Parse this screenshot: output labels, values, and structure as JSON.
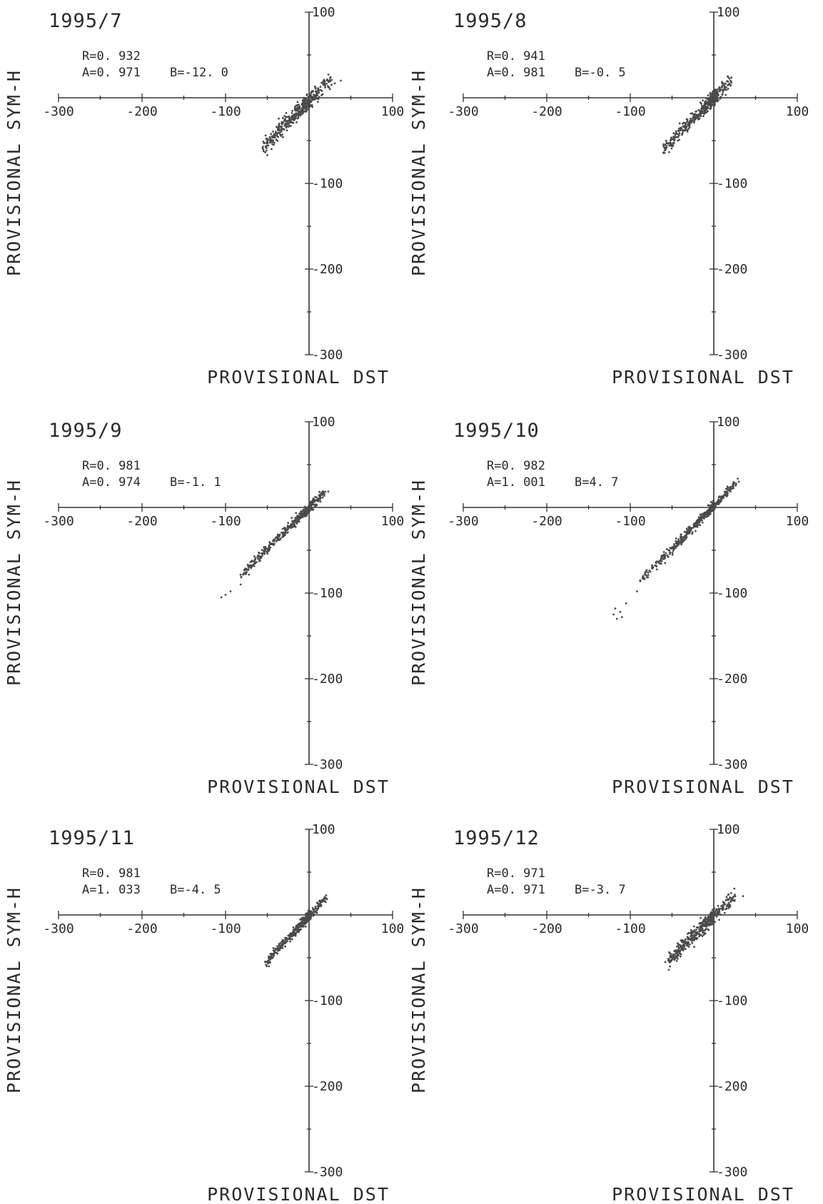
{
  "chart_data": [
    {
      "type": "scatter",
      "title": "1995/7",
      "xlabel": "PROVISIONAL DST",
      "ylabel": "PROVISIONAL SYM-H",
      "xlim": [
        -300,
        100
      ],
      "ylim": [
        -300,
        100
      ],
      "xticks": [
        -300,
        -200,
        -100,
        100
      ],
      "yticks": [
        100,
        -100,
        -200,
        -300
      ],
      "stats": {
        "r": "R=0. 932",
        "a": "A=0. 971",
        "b": "B=-12. 0"
      },
      "fit": {
        "slope": 0.971,
        "intercept": -12.0
      },
      "x_range": [
        -55,
        32
      ],
      "scatter_spread": 7,
      "outliers": [
        [
          38,
          20
        ],
        [
          -50,
          -67
        ],
        [
          -45,
          -60
        ]
      ]
    },
    {
      "type": "scatter",
      "title": "1995/8",
      "xlabel": "PROVISIONAL DST",
      "ylabel": "PROVISIONAL SYM-H",
      "xlim": [
        -300,
        100
      ],
      "ylim": [
        -300,
        100
      ],
      "xticks": [
        -300,
        -200,
        -100,
        100
      ],
      "yticks": [
        100,
        -100,
        -200,
        -300
      ],
      "stats": {
        "r": "R=0. 941",
        "a": "A=0. 981",
        "b": "B=-0. 5"
      },
      "fit": {
        "slope": 0.981,
        "intercept": -0.5
      },
      "x_range": [
        -60,
        22
      ],
      "scatter_spread": 6,
      "outliers": [
        [
          -58,
          -55
        ],
        [
          -52,
          -50
        ]
      ]
    },
    {
      "type": "scatter",
      "title": "1995/9",
      "xlabel": "PROVISIONAL DST",
      "ylabel": "PROVISIONAL SYM-H",
      "xlim": [
        -300,
        100
      ],
      "ylim": [
        -300,
        100
      ],
      "xticks": [
        -300,
        -200,
        -100,
        100
      ],
      "yticks": [
        100,
        -100,
        -200,
        -300
      ],
      "stats": {
        "r": "R=0. 981",
        "a": "A=0. 974",
        "b": "B=-1. 1"
      },
      "fit": {
        "slope": 0.974,
        "intercept": -1.1
      },
      "x_range": [
        -80,
        22
      ],
      "scatter_spread": 4,
      "outliers": [
        [
          -105,
          -105
        ],
        [
          -100,
          -102
        ],
        [
          -94,
          -98
        ],
        [
          -82,
          -90
        ]
      ]
    },
    {
      "type": "scatter",
      "title": "1995/10",
      "xlabel": "PROVISIONAL DST",
      "ylabel": "PROVISIONAL SYM-H",
      "xlim": [
        -300,
        100
      ],
      "ylim": [
        -300,
        100
      ],
      "xticks": [
        -300,
        -200,
        -100,
        100
      ],
      "yticks": [
        100,
        -100,
        -200,
        -300
      ],
      "stats": {
        "r": "R=0. 982",
        "a": "A=1. 001",
        "b": "B=4. 7"
      },
      "fit": {
        "slope": 1.001,
        "intercept": 4.7
      },
      "x_range": [
        -85,
        30
      ],
      "scatter_spread": 4,
      "outliers": [
        [
          -120,
          -125
        ],
        [
          -116,
          -130
        ],
        [
          -112,
          -122
        ],
        [
          -118,
          -118
        ],
        [
          -110,
          -128
        ],
        [
          -105,
          -112
        ],
        [
          -92,
          -98
        ],
        [
          -88,
          -86
        ],
        [
          30,
          30
        ]
      ]
    },
    {
      "type": "scatter",
      "title": "1995/11",
      "xlabel": "PROVISIONAL DST",
      "ylabel": "PROVISIONAL SYM-H",
      "xlim": [
        -300,
        100
      ],
      "ylim": [
        -300,
        100
      ],
      "xticks": [
        -300,
        -200,
        -100,
        100
      ],
      "yticks": [
        100,
        -100,
        -200,
        -300
      ],
      "stats": {
        "r": "R=0. 981",
        "a": "A=1. 033",
        "b": "B=-4. 5"
      },
      "fit": {
        "slope": 1.033,
        "intercept": -4.5
      },
      "x_range": [
        -50,
        22
      ],
      "scatter_spread": 4,
      "outliers": [
        [
          -52,
          -55
        ],
        [
          -48,
          -60
        ]
      ]
    },
    {
      "type": "scatter",
      "title": "1995/12",
      "xlabel": "PROVISIONAL DST",
      "ylabel": "PROVISIONAL SYM-H",
      "xlim": [
        -300,
        100
      ],
      "ylim": [
        -300,
        100
      ],
      "xticks": [
        -300,
        -200,
        -100,
        100
      ],
      "yticks": [
        100,
        -100,
        -200,
        -300
      ],
      "stats": {
        "r": "R=0. 971",
        "a": "A=0. 971",
        "b": "B=-3. 7"
      },
      "fit": {
        "slope": 0.971,
        "intercept": -3.7
      },
      "x_range": [
        -55,
        28
      ],
      "scatter_spread": 6,
      "outliers": [
        [
          -58,
          -55
        ],
        [
          -54,
          -52
        ],
        [
          35,
          22
        ]
      ]
    }
  ]
}
